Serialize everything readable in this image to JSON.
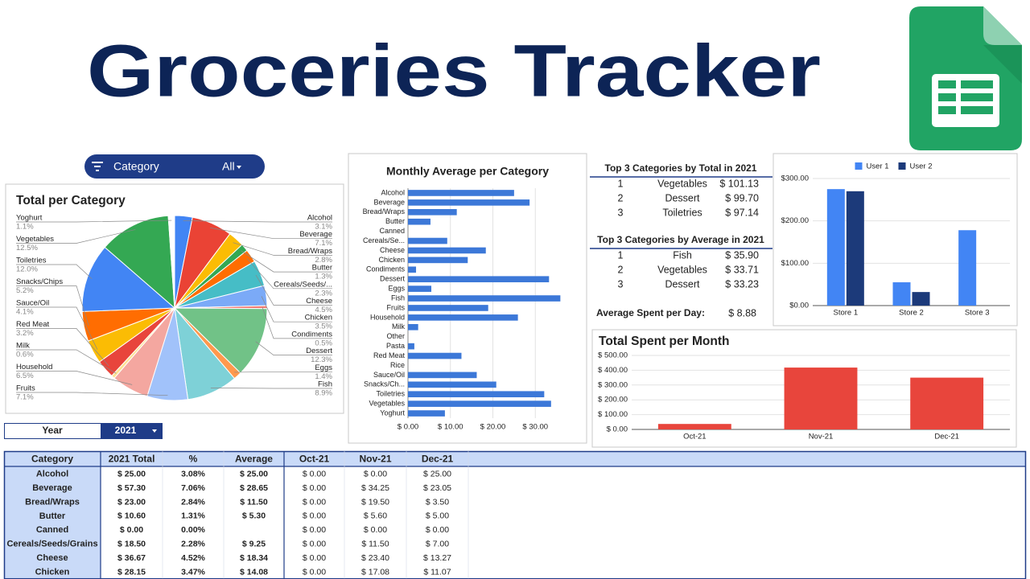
{
  "header": {
    "title": "Groceries Tracker"
  },
  "filter": {
    "label": "Category",
    "value": "All"
  },
  "year_selector": {
    "label": "Year",
    "value": "2021"
  },
  "chart_data": [
    {
      "type": "pie",
      "title": "Total per Category",
      "categories": [
        "Alcohol",
        "Beverage",
        "Bread/Wraps",
        "Butter",
        "Cereals/Seeds/...",
        "Cheese",
        "Chicken",
        "Condiments",
        "Dessert",
        "Eggs",
        "Fish",
        "Fruits",
        "Household",
        "Milk",
        "Red Meat",
        "Sauce/Oil",
        "Snacks/Chips",
        "Toiletries",
        "Vegetables",
        "Yoghurt"
      ],
      "values": [
        3.1,
        7.1,
        2.8,
        1.3,
        2.3,
        4.5,
        3.5,
        0.5,
        12.3,
        1.4,
        8.9,
        7.1,
        6.5,
        0.6,
        3.2,
        4.1,
        5.2,
        12.0,
        12.5,
        1.1
      ],
      "value_labels": [
        "3.1%",
        "7.1%",
        "2.8%",
        "1.3%",
        "2.3%",
        "4.5%",
        "3.5%",
        "0.5%",
        "12.3%",
        "1.4%",
        "8.9%",
        "7.1%",
        "6.5%",
        "0.6%",
        "3.2%",
        "4.1%",
        "5.2%",
        "12.0%",
        "12.5%",
        "1.1%"
      ],
      "colors": [
        "#4285f4",
        "#ea4335",
        "#fbbc04",
        "#34a853",
        "#ff6d01",
        "#46bdc6",
        "#7baaf7",
        "#f07b72",
        "#71c287",
        "#ff994d",
        "#7ed1d7",
        "#a1c2fa",
        "#f4a7a0",
        "#fde293",
        "#e8453c",
        "#fbbc04",
        "#ff6d01",
        "#4285f4",
        "#34a853",
        "#ffffff"
      ]
    },
    {
      "type": "barh",
      "title": "Monthly Average per Category",
      "categories": [
        "Alcohol",
        "Beverage",
        "Bread/Wraps",
        "Butter",
        "Canned",
        "Cereals/Se...",
        "Cheese",
        "Chicken",
        "Condiments",
        "Dessert",
        "Eggs",
        "Fish",
        "Fruits",
        "Household",
        "Milk",
        "Other",
        "Pasta",
        "Red Meat",
        "Rice",
        "Sauce/Oil",
        "Snacks/Ch...",
        "Toiletries",
        "Vegetables",
        "Yoghurt"
      ],
      "values": [
        25.0,
        28.65,
        11.5,
        5.3,
        0,
        9.25,
        18.34,
        14.08,
        1.9,
        33.23,
        5.5,
        35.9,
        18.9,
        25.9,
        2.4,
        0,
        1.5,
        12.6,
        0,
        16.2,
        20.8,
        32.1,
        33.71,
        8.7
      ],
      "color": "#3c78d8",
      "xlim": [
        0,
        40
      ],
      "xticks": [
        {
          "value": 0,
          "label": "$ 0.00"
        },
        {
          "value": 10,
          "label": "$ 10.00"
        },
        {
          "value": 20,
          "label": "$ 20.00"
        },
        {
          "value": 30,
          "label": "$ 30.00"
        }
      ],
      "grid": true
    },
    {
      "type": "bar",
      "categories": [
        "Store 1",
        "Store 2",
        "Store 3"
      ],
      "series": [
        {
          "name": "User 1",
          "color": "#4285f4",
          "values": [
            275,
            55,
            178
          ]
        },
        {
          "name": "User 2",
          "color": "#1c3a7a",
          "values": [
            270,
            32,
            null
          ]
        }
      ],
      "ylim": [
        0,
        300
      ],
      "yticks": [
        {
          "value": 0,
          "label": "$0.00"
        },
        {
          "value": 100,
          "label": "$100.00"
        },
        {
          "value": 200,
          "label": "$200.00"
        },
        {
          "value": 300,
          "label": "$300.00"
        }
      ],
      "grid": true,
      "legend": "top"
    },
    {
      "type": "bar",
      "title": "Total Spent per Month",
      "categories": [
        "Oct-21",
        "Nov-21",
        "Dec-21"
      ],
      "values": [
        37,
        418,
        350
      ],
      "color": "#e8453c",
      "ylim": [
        0,
        500
      ],
      "yticks": [
        {
          "value": 0,
          "label": "$ 0.00"
        },
        {
          "value": 100,
          "label": "$ 100.00"
        },
        {
          "value": 200,
          "label": "$ 200.00"
        },
        {
          "value": 300,
          "label": "$ 300.00"
        },
        {
          "value": 400,
          "label": "$ 400.00"
        },
        {
          "value": 500,
          "label": "$ 500.00"
        }
      ],
      "grid": true
    }
  ],
  "top_total": {
    "title": "Top 3 Categories by Total in 2021",
    "rows": [
      [
        "1",
        "Vegetables",
        "$ 101.13"
      ],
      [
        "2",
        "Dessert",
        "$ 99.70"
      ],
      [
        "3",
        "Toiletries",
        "$ 97.14"
      ]
    ]
  },
  "top_average": {
    "title": "Top 3 Categories by Average in 2021",
    "rows": [
      [
        "1",
        "Fish",
        "$ 35.90"
      ],
      [
        "2",
        "Vegetables",
        "$ 33.71"
      ],
      [
        "3",
        "Dessert",
        "$ 33.23"
      ]
    ]
  },
  "average_per_day": {
    "label": "Average Spent per Day:",
    "value": "$ 8.88"
  },
  "table": {
    "columns": [
      "Category",
      "2021 Total",
      "%",
      "Average",
      "Oct-21",
      "Nov-21",
      "Dec-21"
    ],
    "rows": [
      [
        "Alcohol",
        "$ 25.00",
        "3.08%",
        "$ 25.00",
        "$ 0.00",
        "$ 0.00",
        "$ 25.00"
      ],
      [
        "Beverage",
        "$ 57.30",
        "7.06%",
        "$ 28.65",
        "$ 0.00",
        "$ 34.25",
        "$ 23.05"
      ],
      [
        "Bread/Wraps",
        "$ 23.00",
        "2.84%",
        "$ 11.50",
        "$ 0.00",
        "$ 19.50",
        "$ 3.50"
      ],
      [
        "Butter",
        "$ 10.60",
        "1.31%",
        "$ 5.30",
        "$ 0.00",
        "$ 5.60",
        "$ 5.00"
      ],
      [
        "Canned",
        "$ 0.00",
        "0.00%",
        null,
        "$ 0.00",
        "$ 0.00",
        "$ 0.00"
      ],
      [
        "Cereals/Seeds/Grains",
        "$ 18.50",
        "2.28%",
        "$ 9.25",
        "$ 0.00",
        "$ 11.50",
        "$ 7.00"
      ],
      [
        "Cheese",
        "$ 36.67",
        "4.52%",
        "$ 18.34",
        "$ 0.00",
        "$ 23.40",
        "$ 13.27"
      ],
      [
        "Chicken",
        "$ 28.15",
        "3.47%",
        "$ 14.08",
        "$ 0.00",
        "$ 17.08",
        "$ 11.07"
      ]
    ]
  }
}
